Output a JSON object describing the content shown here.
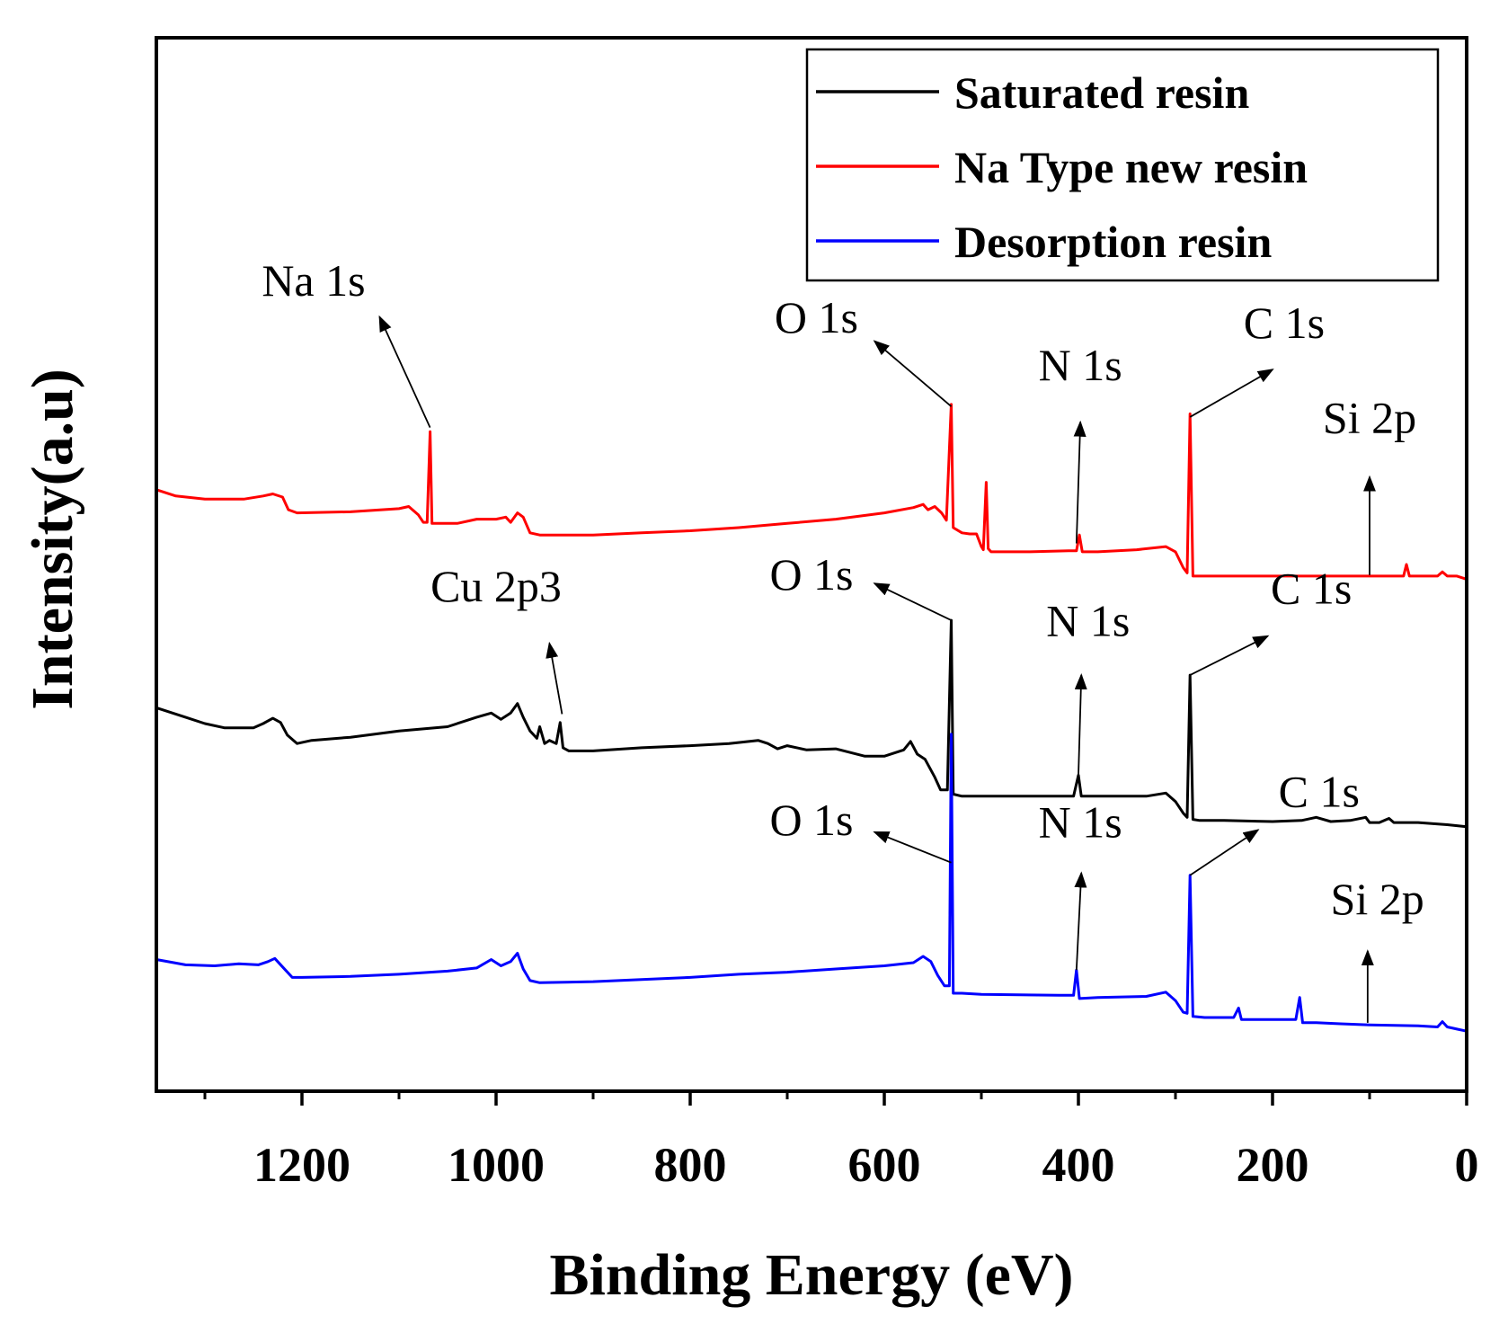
{
  "chart_data": {
    "type": "line",
    "title": "",
    "xlabel": "Binding Energy (eV)",
    "ylabel": "Intensity(a.u)",
    "xlim": [
      1350,
      0
    ],
    "x_reversed": true,
    "ylim": [
      0,
      100
    ],
    "y_ticks_shown": false,
    "x_ticks": [
      1200,
      1000,
      800,
      600,
      400,
      200,
      0
    ],
    "x_tick_labels": [
      "1200",
      "1000",
      "800",
      "600",
      "400",
      "200",
      "0"
    ],
    "legend_position": "top-right",
    "series": [
      {
        "name": "Saturated resin",
        "color": "#000000",
        "points": [
          [
            1350,
            36.4
          ],
          [
            1320,
            35.5
          ],
          [
            1300,
            34.9
          ],
          [
            1280,
            34.5
          ],
          [
            1250,
            34.5
          ],
          [
            1240,
            34.9
          ],
          [
            1230,
            35.4
          ],
          [
            1222,
            35.0
          ],
          [
            1215,
            33.8
          ],
          [
            1205,
            33.0
          ],
          [
            1190,
            33.3
          ],
          [
            1150,
            33.6
          ],
          [
            1100,
            34.2
          ],
          [
            1050,
            34.6
          ],
          [
            1020,
            35.5
          ],
          [
            1005,
            35.9
          ],
          [
            995,
            35.3
          ],
          [
            985,
            35.9
          ],
          [
            978,
            36.8
          ],
          [
            972,
            35.5
          ],
          [
            965,
            34.2
          ],
          [
            958,
            33.5
          ],
          [
            955,
            34.6
          ],
          [
            950,
            33.0
          ],
          [
            945,
            33.3
          ],
          [
            938,
            33.0
          ],
          [
            934,
            35.0
          ],
          [
            931,
            32.6
          ],
          [
            925,
            32.3
          ],
          [
            900,
            32.3
          ],
          [
            850,
            32.6
          ],
          [
            800,
            32.8
          ],
          [
            760,
            33.0
          ],
          [
            730,
            33.3
          ],
          [
            720,
            33.0
          ],
          [
            710,
            32.5
          ],
          [
            700,
            32.8
          ],
          [
            680,
            32.4
          ],
          [
            650,
            32.5
          ],
          [
            620,
            31.8
          ],
          [
            600,
            31.8
          ],
          [
            580,
            32.4
          ],
          [
            573,
            33.2
          ],
          [
            566,
            32.0
          ],
          [
            558,
            31.5
          ],
          [
            548,
            29.8
          ],
          [
            542,
            28.6
          ],
          [
            535,
            28.6
          ],
          [
            531,
            44.7
          ],
          [
            529,
            28.2
          ],
          [
            520,
            28.0
          ],
          [
            500,
            28.0
          ],
          [
            420,
            28.0
          ],
          [
            405,
            28.0
          ],
          [
            400,
            30.0
          ],
          [
            397,
            28.0
          ],
          [
            380,
            28.0
          ],
          [
            330,
            28.0
          ],
          [
            310,
            28.3
          ],
          [
            300,
            27.5
          ],
          [
            292,
            26.4
          ],
          [
            288,
            26.0
          ],
          [
            285,
            39.5
          ],
          [
            282,
            25.8
          ],
          [
            275,
            25.7
          ],
          [
            250,
            25.7
          ],
          [
            200,
            25.6
          ],
          [
            170,
            25.7
          ],
          [
            155,
            26.0
          ],
          [
            140,
            25.6
          ],
          [
            120,
            25.7
          ],
          [
            104,
            26.0
          ],
          [
            100,
            25.5
          ],
          [
            90,
            25.5
          ],
          [
            80,
            25.9
          ],
          [
            75,
            25.5
          ],
          [
            50,
            25.5
          ],
          [
            20,
            25.3
          ],
          [
            0,
            25.1
          ]
        ]
      },
      {
        "name": "Na Type new resin",
        "color": "#ff0000",
        "points": [
          [
            1350,
            57.1
          ],
          [
            1330,
            56.5
          ],
          [
            1300,
            56.2
          ],
          [
            1260,
            56.2
          ],
          [
            1240,
            56.5
          ],
          [
            1230,
            56.7
          ],
          [
            1220,
            56.4
          ],
          [
            1214,
            55.2
          ],
          [
            1205,
            54.9
          ],
          [
            1150,
            55.0
          ],
          [
            1100,
            55.3
          ],
          [
            1090,
            55.5
          ],
          [
            1080,
            54.7
          ],
          [
            1075,
            54.0
          ],
          [
            1071,
            54.0
          ],
          [
            1068,
            62.6
          ],
          [
            1066,
            53.9
          ],
          [
            1060,
            53.9
          ],
          [
            1040,
            53.9
          ],
          [
            1020,
            54.3
          ],
          [
            1000,
            54.3
          ],
          [
            990,
            54.5
          ],
          [
            985,
            54.0
          ],
          [
            978,
            54.9
          ],
          [
            972,
            54.5
          ],
          [
            965,
            53.0
          ],
          [
            955,
            52.8
          ],
          [
            900,
            52.8
          ],
          [
            850,
            53.0
          ],
          [
            800,
            53.2
          ],
          [
            750,
            53.5
          ],
          [
            700,
            53.9
          ],
          [
            650,
            54.3
          ],
          [
            600,
            54.9
          ],
          [
            570,
            55.4
          ],
          [
            560,
            55.7
          ],
          [
            555,
            55.2
          ],
          [
            548,
            55.5
          ],
          [
            541,
            54.9
          ],
          [
            536,
            54.2
          ],
          [
            531,
            65.2
          ],
          [
            529,
            53.5
          ],
          [
            520,
            53.0
          ],
          [
            512,
            52.9
          ],
          [
            505,
            52.9
          ],
          [
            500,
            51.7
          ],
          [
            498,
            51.4
          ],
          [
            495,
            57.8
          ],
          [
            493,
            51.5
          ],
          [
            490,
            51.2
          ],
          [
            450,
            51.2
          ],
          [
            410,
            51.3
          ],
          [
            402,
            51.3
          ],
          [
            399,
            52.8
          ],
          [
            396,
            51.2
          ],
          [
            380,
            51.2
          ],
          [
            340,
            51.4
          ],
          [
            310,
            51.7
          ],
          [
            300,
            51.2
          ],
          [
            292,
            49.7
          ],
          [
            288,
            49.2
          ],
          [
            285,
            64.3
          ],
          [
            282,
            48.9
          ],
          [
            278,
            48.9
          ],
          [
            250,
            48.9
          ],
          [
            200,
            48.9
          ],
          [
            150,
            48.9
          ],
          [
            120,
            48.9
          ],
          [
            100,
            48.9
          ],
          [
            65,
            48.9
          ],
          [
            62,
            50.0
          ],
          [
            59,
            48.9
          ],
          [
            45,
            48.9
          ],
          [
            30,
            48.9
          ],
          [
            25,
            49.3
          ],
          [
            20,
            48.9
          ],
          [
            10,
            48.9
          ],
          [
            0,
            48.6
          ]
        ]
      },
      {
        "name": "Desorption resin",
        "color": "#0000ff",
        "points": [
          [
            1350,
            12.5
          ],
          [
            1320,
            12.0
          ],
          [
            1290,
            11.9
          ],
          [
            1265,
            12.1
          ],
          [
            1245,
            12.0
          ],
          [
            1235,
            12.3
          ],
          [
            1228,
            12.6
          ],
          [
            1220,
            11.8
          ],
          [
            1210,
            10.8
          ],
          [
            1200,
            10.8
          ],
          [
            1150,
            10.9
          ],
          [
            1100,
            11.1
          ],
          [
            1050,
            11.4
          ],
          [
            1020,
            11.7
          ],
          [
            1005,
            12.5
          ],
          [
            995,
            11.9
          ],
          [
            985,
            12.3
          ],
          [
            978,
            13.1
          ],
          [
            972,
            11.6
          ],
          [
            965,
            10.5
          ],
          [
            955,
            10.3
          ],
          [
            900,
            10.4
          ],
          [
            850,
            10.6
          ],
          [
            800,
            10.8
          ],
          [
            750,
            11.1
          ],
          [
            700,
            11.3
          ],
          [
            650,
            11.6
          ],
          [
            600,
            11.9
          ],
          [
            570,
            12.2
          ],
          [
            560,
            12.8
          ],
          [
            552,
            12.3
          ],
          [
            545,
            11.0
          ],
          [
            538,
            10.0
          ],
          [
            533,
            10.0
          ],
          [
            531,
            33.9
          ],
          [
            529,
            9.3
          ],
          [
            520,
            9.3
          ],
          [
            500,
            9.2
          ],
          [
            420,
            9.1
          ],
          [
            405,
            9.1
          ],
          [
            402,
            11.5
          ],
          [
            399,
            8.8
          ],
          [
            380,
            8.9
          ],
          [
            330,
            9.0
          ],
          [
            310,
            9.4
          ],
          [
            300,
            8.6
          ],
          [
            292,
            7.5
          ],
          [
            288,
            7.4
          ],
          [
            285,
            20.5
          ],
          [
            282,
            7.1
          ],
          [
            270,
            7.0
          ],
          [
            240,
            7.0
          ],
          [
            235,
            7.9
          ],
          [
            232,
            6.8
          ],
          [
            200,
            6.8
          ],
          [
            176,
            6.8
          ],
          [
            172,
            8.9
          ],
          [
            169,
            6.5
          ],
          [
            155,
            6.5
          ],
          [
            130,
            6.4
          ],
          [
            100,
            6.3
          ],
          [
            50,
            6.2
          ],
          [
            30,
            6.1
          ],
          [
            25,
            6.6
          ],
          [
            20,
            6.1
          ],
          [
            10,
            5.9
          ],
          [
            0,
            5.7
          ]
        ]
      }
    ],
    "annotations": [
      {
        "label": "Na 1s",
        "series": "Na Type new resin",
        "arrow_from": [
          1068,
          63
        ],
        "arrow_to": [
          1120,
          73.5
        ],
        "text_at": [
          1188,
          75.5
        ]
      },
      {
        "label": "O 1s",
        "series": "Na Type new resin",
        "arrow_from": [
          531,
          65
        ],
        "arrow_to": [
          610,
          71.2
        ],
        "text_at": [
          670,
          72.0
        ]
      },
      {
        "label": "N 1s",
        "series": "Na Type new resin",
        "arrow_from": [
          402,
          52
        ],
        "arrow_to": [
          398,
          63.5
        ],
        "text_at": [
          398,
          67.5
        ]
      },
      {
        "label": "C 1s",
        "series": "Na Type new resin",
        "arrow_from": [
          285,
          64
        ],
        "arrow_to": [
          200,
          68.5
        ],
        "text_at": [
          188,
          71.5
        ]
      },
      {
        "label": "Si 2p",
        "series": "Na Type new resin",
        "arrow_from": [
          100,
          49
        ],
        "arrow_to": [
          100,
          58.3
        ],
        "text_at": [
          100,
          62.5
        ]
      },
      {
        "label": "Cu 2p3",
        "series": "Saturated resin",
        "arrow_from": [
          932,
          35.8
        ],
        "arrow_to": [
          945,
          42.5
        ],
        "text_at": [
          1000,
          46.5
        ]
      },
      {
        "label": "O 1s",
        "series": "Saturated resin",
        "arrow_from": [
          531,
          44.7
        ],
        "arrow_to": [
          610,
          48.2
        ],
        "text_at": [
          675,
          47.6
        ]
      },
      {
        "label": "N 1s",
        "series": "Saturated resin",
        "arrow_from": [
          400,
          30
        ],
        "arrow_to": [
          397,
          39.5
        ],
        "text_at": [
          390,
          43.2
        ]
      },
      {
        "label": "C 1s",
        "series": "Saturated resin",
        "arrow_from": [
          285,
          39.5
        ],
        "arrow_to": [
          205,
          43.2
        ],
        "text_at": [
          160,
          46.3
        ]
      },
      {
        "label": "O 1s",
        "series": "Desorption resin",
        "arrow_from": [
          531,
          21.7
        ],
        "arrow_to": [
          610,
          24.6
        ],
        "text_at": [
          675,
          24.3
        ]
      },
      {
        "label": "N 1s",
        "series": "Desorption resin",
        "arrow_from": [
          402,
          11.5
        ],
        "arrow_to": [
          397,
          20.7
        ],
        "text_at": [
          398,
          24.1
        ]
      },
      {
        "label": "C 1s",
        "series": "Desorption resin",
        "arrow_from": [
          285,
          20.5
        ],
        "arrow_to": [
          215,
          24.8
        ],
        "text_at": [
          152,
          27.0
        ]
      },
      {
        "label": "Si 2p",
        "series": "Desorption resin",
        "arrow_from": [
          102,
          6.5
        ],
        "arrow_to": [
          102,
          13.3
        ],
        "text_at": [
          92,
          16.8
        ]
      }
    ]
  }
}
